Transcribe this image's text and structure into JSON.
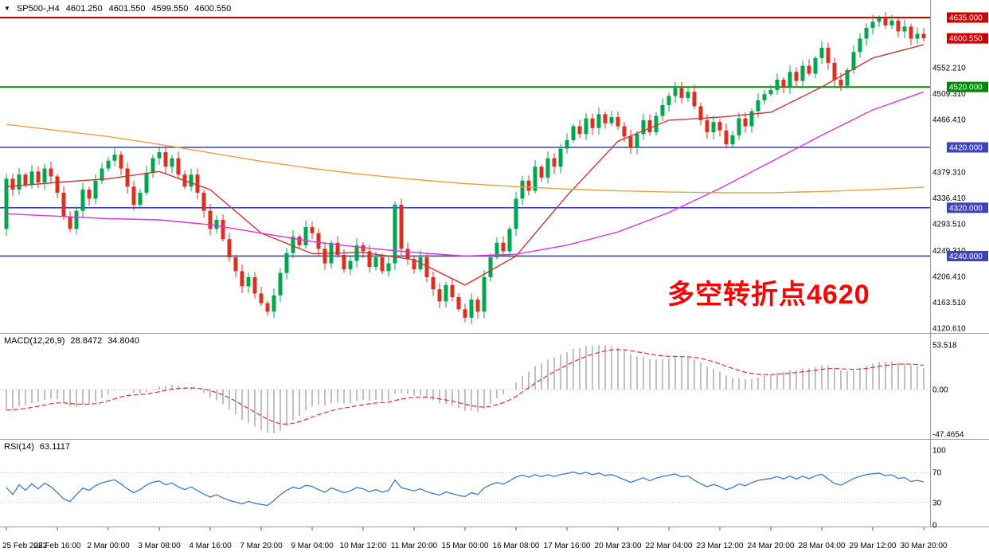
{
  "title": {
    "indicator_arrow": "▼",
    "symbol": "SP500-,H4",
    "open": "4601.250",
    "high": "4601.550",
    "low": "4599.550",
    "close": "4600.550"
  },
  "annotation": {
    "text": "多空转折点4620",
    "color": "#FF0000"
  },
  "macd_panel": {
    "label": "MACD(12,26,9)",
    "main_value": "28.8472",
    "signal_value": "34.8040",
    "axis_labels": [
      "53.518",
      "0.00",
      "-47.4654"
    ]
  },
  "rsi_panel": {
    "label": "RSI(14)",
    "value": "63.1117",
    "axis_labels": [
      "100",
      "70",
      "30",
      "0"
    ]
  },
  "chart_data": {
    "type": "candlestick",
    "symbol": "SP500-",
    "timeframe": "H4",
    "last_ohlc": {
      "open": 4601.25,
      "high": 4601.55,
      "low": 4599.55,
      "close": 4600.55
    },
    "y_min": 4120.61,
    "y_max": 4635.0,
    "first_open": 4285,
    "bars_per_label": 8,
    "closes": [
      4368,
      4350,
      4375,
      4358,
      4380,
      4362,
      4385,
      4372,
      4345,
      4305,
      4285,
      4315,
      4350,
      4335,
      4365,
      4385,
      4398,
      4408,
      4385,
      4355,
      4325,
      4345,
      4378,
      4402,
      4412,
      4388,
      4402,
      4375,
      4355,
      4375,
      4345,
      4315,
      4285,
      4300,
      4268,
      4238,
      4215,
      4190,
      4205,
      4178,
      4162,
      4148,
      4175,
      4212,
      4245,
      4272,
      4258,
      4288,
      4278,
      4252,
      4228,
      4262,
      4242,
      4218,
      4232,
      4258,
      4248,
      4222,
      4238,
      4215,
      4228,
      4325,
      4252,
      4235,
      4218,
      4238,
      4205,
      4185,
      4165,
      4192,
      4172,
      4152,
      4138,
      4168,
      4148,
      4205,
      4238,
      4262,
      4248,
      4285,
      4335,
      4365,
      4348,
      4388,
      4370,
      4402,
      4388,
      4418,
      4432,
      4455,
      4442,
      4468,
      4452,
      4475,
      4460,
      4470,
      4455,
      4438,
      4420,
      4442,
      4465,
      4445,
      4472,
      4490,
      4505,
      4518,
      4502,
      4512,
      4488,
      4465,
      4445,
      4462,
      4448,
      4425,
      4440,
      4468,
      4455,
      4480,
      4498,
      4508,
      4515,
      4532,
      4520,
      4545,
      4530,
      4555,
      4542,
      4568,
      4585,
      4560,
      4532,
      4522,
      4548,
      4578,
      4600,
      4618,
      4628,
      4634,
      4622,
      4630,
      4612,
      4620,
      4600,
      4608,
      4600.55
    ],
    "x_labels": [
      "25 Feb 2022",
      "28 Feb 16:00",
      "2 Mar 00:00",
      "3 Mar 08:00",
      "4 Mar 16:00",
      "7 Mar 20:00",
      "9 Mar 04:00",
      "10 Mar 12:00",
      "11 Mar 20:00",
      "15 Mar 00:00",
      "16 Mar 08:00",
      "17 Mar 16:00",
      "20 Mar 23:00",
      "22 Mar 04:00",
      "23 Mar 12:00",
      "24 Mar 20:00",
      "28 Mar 04:00",
      "29 Mar 12:00",
      "30 Mar 20:00"
    ],
    "price_axis_plain_labels": [
      "4552.210",
      "4509.310",
      "4466.410",
      "4379.310",
      "4336.410",
      "4293.510",
      "4249.310",
      "4206.410",
      "4163.510",
      "4120.610"
    ],
    "hlines": [
      {
        "value": 4635.0,
        "label": "4635.000",
        "color": "#CC0000",
        "width": 2
      },
      {
        "value": 4520.0,
        "label": "4520.000",
        "color": "#008A00",
        "width": 2
      },
      {
        "value": 4420.0,
        "label": "4420.000",
        "color": "#3C44BB",
        "width": 1.6
      },
      {
        "value": 4320.0,
        "label": "4320.000",
        "color": "#3C44BB",
        "width": 1.6
      },
      {
        "value": 4240.0,
        "label": "4240.000",
        "color": "#3C44BB",
        "width": 1.6
      }
    ],
    "current_price": {
      "value": 4600.55,
      "label": "4600.550",
      "color": "#CC0000"
    },
    "overlays": {
      "anchor_step": 8,
      "series": [
        {
          "name": "ma-fast-red",
          "color": "#CC3333",
          "values": [
            4355,
            4362,
            4368,
            4380,
            4350,
            4278,
            4244,
            4246,
            4234,
            4192,
            4240,
            4340,
            4430,
            4465,
            4470,
            4478,
            4520,
            4568,
            4590
          ]
        },
        {
          "name": "ma-mid-magenta",
          "color": "#DD33DD",
          "values": [
            4310,
            4306,
            4302,
            4300,
            4292,
            4278,
            4264,
            4254,
            4246,
            4240,
            4243,
            4258,
            4280,
            4312,
            4352,
            4396,
            4440,
            4482,
            4512
          ]
        },
        {
          "name": "ma-slow-orange",
          "color": "#E8A13C",
          "values": [
            4458,
            4448,
            4438,
            4425,
            4411,
            4397,
            4385,
            4375,
            4367,
            4360,
            4355,
            4351,
            4348,
            4346,
            4345,
            4345,
            4347,
            4350,
            4354
          ]
        }
      ]
    },
    "indicators": {
      "macd": {
        "fast": 12,
        "slow": 26,
        "signal": 9,
        "histogram_color": "#C0C0C0",
        "signal_color": "#E03030",
        "axis_max": 53.518,
        "axis_min": -47.4654
      },
      "rsi": {
        "period": 14,
        "color": "#4178BE",
        "levels": [
          70,
          30
        ]
      }
    },
    "candle_colors": {
      "up": "#00A550",
      "down": "#D9301F"
    }
  }
}
